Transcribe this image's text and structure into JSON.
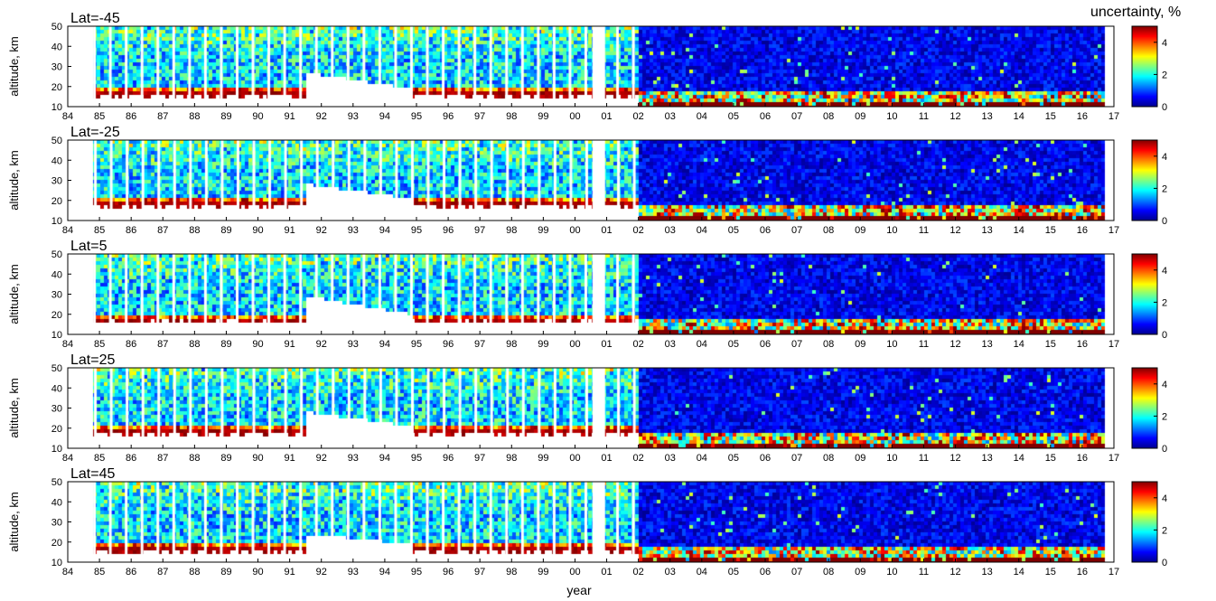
{
  "chart_data": {
    "type": "heatmap",
    "xlabel": "year",
    "ylabel": "altitude, km",
    "colorbar_label": "uncertainty, %",
    "colormap": "jet",
    "x_ticks": [
      "84",
      "85",
      "86",
      "87",
      "88",
      "89",
      "90",
      "91",
      "92",
      "93",
      "94",
      "95",
      "96",
      "97",
      "98",
      "99",
      "00",
      "01",
      "02",
      "03",
      "04",
      "05",
      "06",
      "07",
      "08",
      "09",
      "10",
      "11",
      "12",
      "13",
      "14",
      "15",
      "16",
      "17"
    ],
    "xlim": [
      1984,
      2017
    ],
    "y_ticks": [
      10,
      20,
      30,
      40,
      50
    ],
    "ylim": [
      10,
      50
    ],
    "colorbar_ticks": [
      0,
      2,
      4
    ],
    "clim": [
      0,
      5
    ],
    "panels": [
      {
        "title": "Lat=-45",
        "trop_km": 17,
        "pinatubo_top_km": 27
      },
      {
        "title": "Lat=-25",
        "trop_km": 19,
        "pinatubo_top_km": 28
      },
      {
        "title": "Lat=5",
        "trop_km": 18,
        "pinatubo_top_km": 29
      },
      {
        "title": "Lat=25",
        "trop_km": 19,
        "pinatubo_top_km": 28
      },
      {
        "title": "Lat=45",
        "trop_km": 17,
        "pinatubo_top_km": 24
      }
    ],
    "data_gap_years": [
      [
        2000.55,
        2000.95
      ]
    ],
    "colors": {
      "dark_red": "#800000",
      "red": "#ff0000",
      "yellow": "#ffff00",
      "cyan": "#00ffff",
      "blue": "#0000ff",
      "dark_blue": "#00008f"
    }
  }
}
